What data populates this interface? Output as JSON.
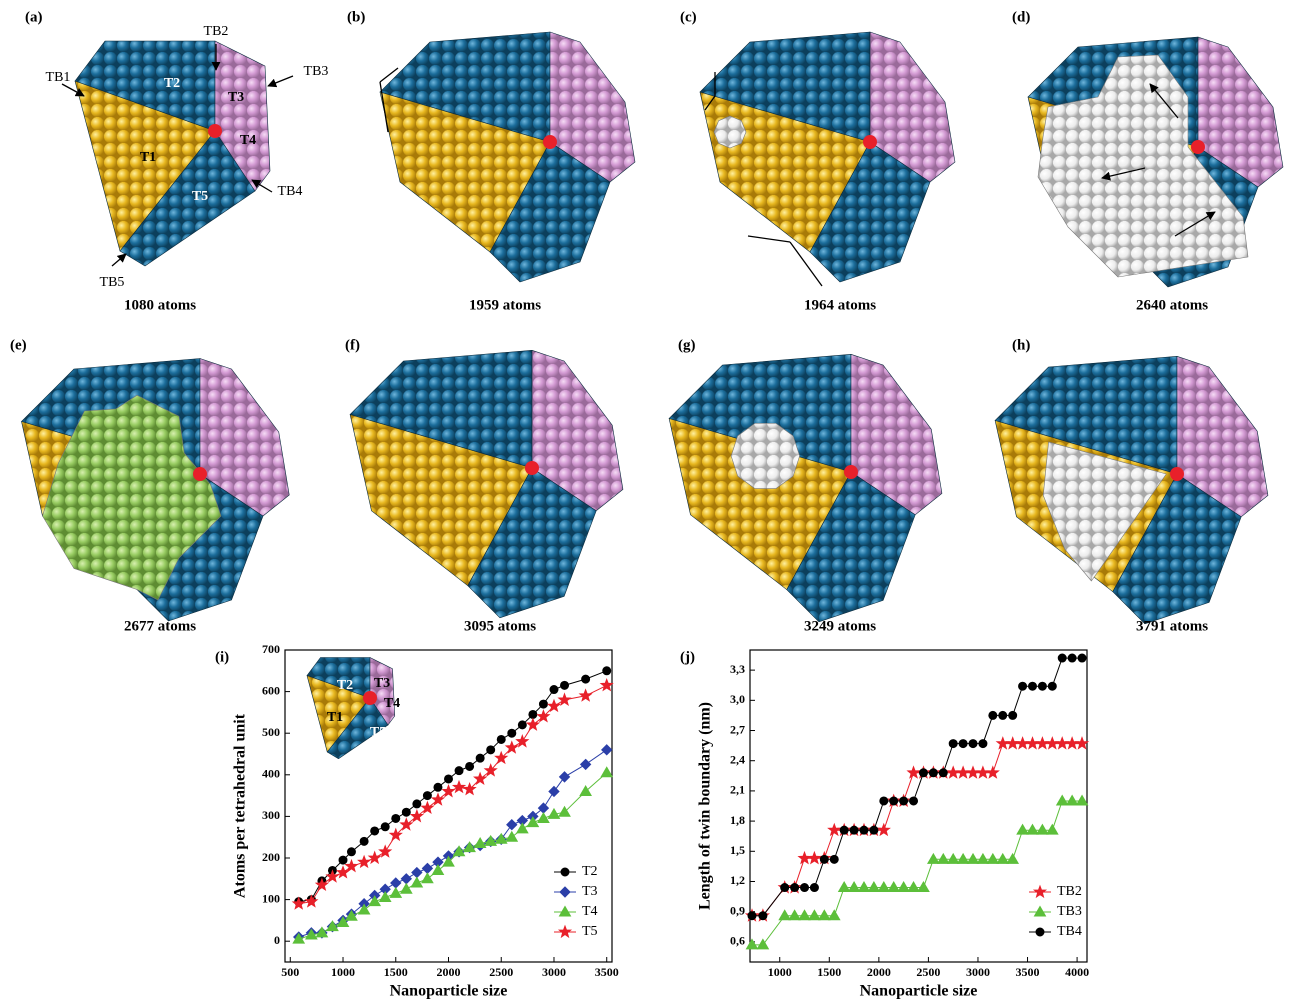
{
  "panels": [
    {
      "label": "(a)",
      "caption": "1080 atoms",
      "annotations": [
        "TB1",
        "TB2",
        "TB3",
        "TB4",
        "TB5",
        "T1",
        "T2",
        "T3",
        "T4",
        "T5"
      ]
    },
    {
      "label": "(b)",
      "caption": "1959 atoms"
    },
    {
      "label": "(c)",
      "caption": "1964 atoms"
    },
    {
      "label": "(d)",
      "caption": "2640 atoms"
    },
    {
      "label": "(e)",
      "caption": "2677 atoms"
    },
    {
      "label": "(f)",
      "caption": "3095 atoms"
    },
    {
      "label": "(g)",
      "caption": "3249 atoms"
    },
    {
      "label": "(h)",
      "caption": "3791 atoms"
    }
  ],
  "chart_data": [
    {
      "type": "line",
      "label": "(i)",
      "x_label": "Nanoparticle size",
      "y_label": "Atoms per tetrahedral unit",
      "inset_labels": [
        "T1",
        "T2",
        "T3",
        "T4",
        "T5"
      ],
      "xlim": [
        450,
        3550
      ],
      "xticks": [
        500,
        1000,
        1500,
        2000,
        2500,
        3000,
        3500
      ],
      "ylim": [
        -50,
        700
      ],
      "yticks": [
        0,
        100,
        200,
        300,
        400,
        500,
        600,
        700
      ],
      "x": [
        580,
        700,
        800,
        900,
        1000,
        1080,
        1200,
        1300,
        1400,
        1500,
        1600,
        1700,
        1800,
        1900,
        2000,
        2100,
        2200,
        2300,
        2400,
        2500,
        2600,
        2700,
        2800,
        2900,
        3000,
        3100,
        3300,
        3500
      ],
      "series": [
        {
          "name": "T2",
          "color": "#000000",
          "marker": "circle",
          "values": [
            95,
            100,
            145,
            170,
            195,
            215,
            240,
            265,
            275,
            295,
            310,
            330,
            350,
            370,
            390,
            410,
            420,
            440,
            460,
            485,
            500,
            520,
            545,
            570,
            605,
            615,
            630,
            650
          ]
        },
        {
          "name": "T3",
          "color": "#2b3fa8",
          "marker": "diamond",
          "values": [
            10,
            20,
            20,
            35,
            50,
            65,
            90,
            110,
            125,
            140,
            150,
            165,
            175,
            190,
            205,
            215,
            225,
            230,
            240,
            245,
            280,
            290,
            300,
            320,
            360,
            395,
            425,
            460
          ]
        },
        {
          "name": "T4",
          "color": "#5cbf3a",
          "marker": "triangle",
          "values": [
            5,
            15,
            20,
            35,
            45,
            60,
            75,
            95,
            105,
            115,
            125,
            140,
            150,
            170,
            190,
            215,
            225,
            235,
            240,
            245,
            250,
            270,
            285,
            295,
            305,
            310,
            360,
            405
          ]
        },
        {
          "name": "T5",
          "color": "#e8202a",
          "marker": "star",
          "values": [
            90,
            95,
            135,
            155,
            165,
            180,
            190,
            200,
            215,
            255,
            280,
            300,
            320,
            340,
            360,
            370,
            365,
            390,
            410,
            440,
            465,
            480,
            520,
            540,
            565,
            580,
            590,
            615
          ]
        }
      ]
    },
    {
      "type": "line",
      "label": "(j)",
      "x_label": "Nanoparticle size",
      "y_label": "Length of twin boundary (nm)",
      "xlim": [
        700,
        4100
      ],
      "xticks": [
        1000,
        1500,
        2000,
        2500,
        3000,
        3500,
        4000
      ],
      "ylim": [
        0.4,
        3.5
      ],
      "yticks": [
        {
          "value": 0.6,
          "label": "0,6"
        },
        {
          "value": 0.9,
          "label": "0,9"
        },
        {
          "value": 1.2,
          "label": "1,2"
        },
        {
          "value": 1.5,
          "label": "1,5"
        },
        {
          "value": 1.8,
          "label": "1,8"
        },
        {
          "value": 2.1,
          "label": "2,1"
        },
        {
          "value": 2.4,
          "label": "2,4"
        },
        {
          "value": 2.7,
          "label": "2,7"
        },
        {
          "value": 3.0,
          "label": "3,0"
        },
        {
          "value": 3.3,
          "label": "3,3"
        }
      ],
      "x": [
        720,
        830,
        1050,
        1150,
        1250,
        1350,
        1450,
        1550,
        1650,
        1750,
        1850,
        1950,
        2050,
        2150,
        2250,
        2350,
        2450,
        2550,
        2650,
        2750,
        2850,
        2950,
        3050,
        3150,
        3250,
        3350,
        3450,
        3550,
        3650,
        3750,
        3850,
        3950,
        4050
      ],
      "series": [
        {
          "name": "TB2",
          "color": "#e8202a",
          "marker": "star",
          "values": [
            0.86,
            0.86,
            1.14,
            1.14,
            1.43,
            1.43,
            1.43,
            1.71,
            1.71,
            1.71,
            1.71,
            1.71,
            1.71,
            2.0,
            2.0,
            2.28,
            2.28,
            2.28,
            2.28,
            2.28,
            2.28,
            2.28,
            2.28,
            2.28,
            2.57,
            2.57,
            2.57,
            2.57,
            2.57,
            2.57,
            2.57,
            2.57,
            2.57
          ]
        },
        {
          "name": "TB3",
          "color": "#5cbf3a",
          "marker": "triangle",
          "values": [
            0.57,
            0.57,
            0.86,
            0.86,
            0.86,
            0.86,
            0.86,
            0.86,
            1.14,
            1.14,
            1.14,
            1.14,
            1.14,
            1.14,
            1.14,
            1.14,
            1.14,
            1.42,
            1.42,
            1.42,
            1.42,
            1.42,
            1.42,
            1.42,
            1.42,
            1.42,
            1.71,
            1.71,
            1.71,
            1.71,
            2.0,
            2.0,
            2.0
          ]
        },
        {
          "name": "TB4",
          "color": "#000000",
          "marker": "circle",
          "values": [
            0.86,
            0.86,
            1.14,
            1.14,
            1.14,
            1.14,
            1.42,
            1.42,
            1.71,
            1.71,
            1.71,
            1.71,
            2.0,
            2.0,
            2.0,
            2.0,
            2.28,
            2.28,
            2.28,
            2.57,
            2.57,
            2.57,
            2.57,
            2.85,
            2.85,
            2.85,
            3.14,
            3.14,
            3.14,
            3.14,
            3.42,
            3.42,
            3.42
          ]
        }
      ]
    }
  ]
}
